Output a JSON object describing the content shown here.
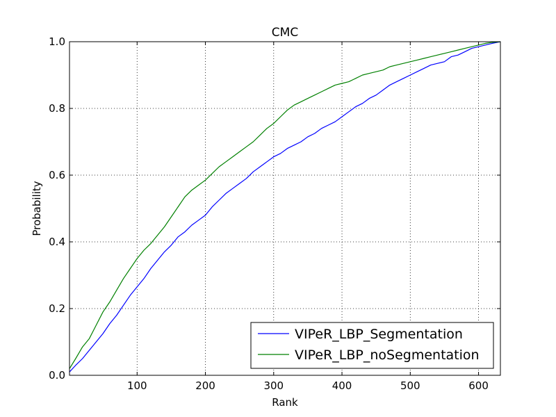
{
  "chart_data": {
    "type": "line",
    "title": "CMC",
    "xlabel": "Rank",
    "ylabel": "Probability",
    "xlim": [
      1,
      632
    ],
    "ylim": [
      0.0,
      1.0
    ],
    "xticks": [
      100,
      200,
      300,
      400,
      500,
      600
    ],
    "xtick_labels": [
      "100",
      "200",
      "300",
      "400",
      "500",
      "600"
    ],
    "yticks": [
      0.0,
      0.2,
      0.4,
      0.6,
      0.8,
      1.0
    ],
    "ytick_labels": [
      "0.0",
      "0.2",
      "0.4",
      "0.6",
      "0.8",
      "1.0"
    ],
    "grid": true,
    "legend_position": "lower-right",
    "series": [
      {
        "name": "VIPeR_LBP_Segmentation",
        "color": "#0000ff",
        "x": [
          1,
          10,
          20,
          30,
          40,
          50,
          60,
          70,
          80,
          90,
          100,
          110,
          120,
          130,
          140,
          150,
          160,
          170,
          180,
          190,
          200,
          210,
          220,
          230,
          240,
          250,
          260,
          270,
          280,
          290,
          300,
          310,
          320,
          330,
          340,
          350,
          360,
          370,
          380,
          390,
          400,
          410,
          420,
          430,
          440,
          450,
          460,
          470,
          480,
          490,
          500,
          510,
          520,
          530,
          540,
          550,
          560,
          570,
          580,
          590,
          600,
          610,
          620,
          632
        ],
        "y": [
          0.01,
          0.03,
          0.05,
          0.075,
          0.1,
          0.125,
          0.155,
          0.18,
          0.21,
          0.24,
          0.265,
          0.29,
          0.32,
          0.345,
          0.37,
          0.39,
          0.415,
          0.43,
          0.45,
          0.465,
          0.48,
          0.505,
          0.525,
          0.545,
          0.56,
          0.575,
          0.59,
          0.61,
          0.625,
          0.64,
          0.655,
          0.665,
          0.68,
          0.69,
          0.7,
          0.715,
          0.725,
          0.74,
          0.75,
          0.76,
          0.775,
          0.79,
          0.805,
          0.815,
          0.83,
          0.84,
          0.855,
          0.87,
          0.88,
          0.89,
          0.9,
          0.91,
          0.92,
          0.93,
          0.935,
          0.94,
          0.955,
          0.96,
          0.97,
          0.98,
          0.985,
          0.99,
          0.995,
          1.0
        ]
      },
      {
        "name": "VIPeR_LBP_noSegmentation",
        "color": "#008000",
        "x": [
          1,
          10,
          20,
          30,
          40,
          50,
          60,
          70,
          80,
          90,
          100,
          110,
          120,
          130,
          140,
          150,
          160,
          170,
          180,
          190,
          200,
          210,
          220,
          230,
          240,
          250,
          260,
          270,
          280,
          290,
          300,
          310,
          320,
          330,
          340,
          350,
          360,
          370,
          380,
          390,
          400,
          410,
          420,
          430,
          440,
          450,
          460,
          470,
          480,
          490,
          500,
          510,
          520,
          530,
          540,
          550,
          560,
          570,
          580,
          590,
          600,
          610,
          620,
          632
        ],
        "y": [
          0.02,
          0.05,
          0.085,
          0.11,
          0.15,
          0.19,
          0.22,
          0.255,
          0.29,
          0.32,
          0.35,
          0.375,
          0.395,
          0.42,
          0.445,
          0.475,
          0.505,
          0.535,
          0.555,
          0.57,
          0.585,
          0.605,
          0.625,
          0.64,
          0.655,
          0.67,
          0.685,
          0.7,
          0.72,
          0.74,
          0.755,
          0.775,
          0.795,
          0.81,
          0.82,
          0.83,
          0.84,
          0.85,
          0.86,
          0.87,
          0.875,
          0.88,
          0.89,
          0.9,
          0.905,
          0.91,
          0.915,
          0.925,
          0.93,
          0.935,
          0.94,
          0.945,
          0.95,
          0.955,
          0.96,
          0.965,
          0.97,
          0.975,
          0.98,
          0.985,
          0.99,
          0.995,
          0.998,
          1.0
        ]
      }
    ]
  }
}
